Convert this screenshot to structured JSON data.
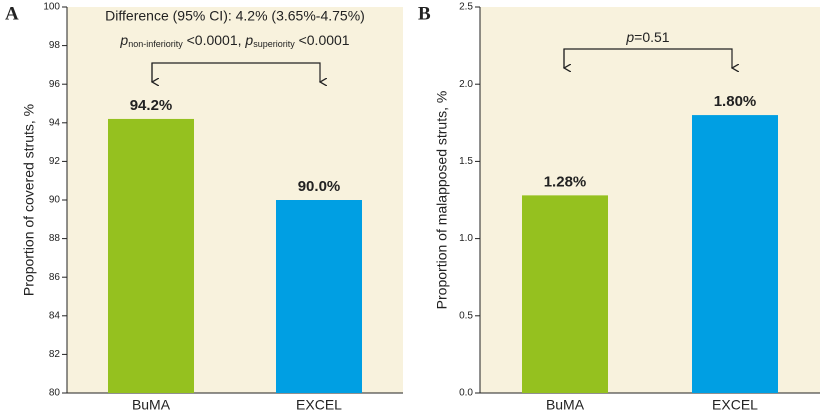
{
  "chart_data": [
    {
      "type": "bar",
      "panel": "A",
      "ylabel": "Proportion of covered struts, %",
      "categories": [
        "BuMA",
        "EXCEL"
      ],
      "values": [
        94.2,
        90.0
      ],
      "value_labels": [
        "94.2%",
        "90.0%"
      ],
      "colors": [
        "#95c11f",
        "#009fe3"
      ],
      "ylim": [
        80,
        100
      ],
      "yticks": [
        80,
        82,
        84,
        86,
        88,
        90,
        92,
        94,
        96,
        98,
        100
      ],
      "annotation": "Difference (95% CI): 4.2% (3.65%-4.75%)",
      "p_text": [
        "p",
        "non-inferiority",
        " <0.0001, ",
        "p",
        "superiority",
        " <0.0001"
      ]
    },
    {
      "type": "bar",
      "panel": "B",
      "ylabel": "Proportion of malapposed struts, %",
      "categories": [
        "BuMA",
        "EXCEL"
      ],
      "values": [
        1.28,
        1.8
      ],
      "value_labels": [
        "1.28%",
        "1.80%"
      ],
      "colors": [
        "#95c11f",
        "#009fe3"
      ],
      "ylim": [
        0,
        2.5
      ],
      "yticks": [
        {
          "value": 0,
          "label": "0.0"
        },
        0.5,
        {
          "value": 1,
          "label": "1.0"
        },
        1.5,
        {
          "value": 2,
          "label": "2.0"
        },
        2.5
      ],
      "p_text": [
        "p",
        "=0.51"
      ]
    }
  ]
}
